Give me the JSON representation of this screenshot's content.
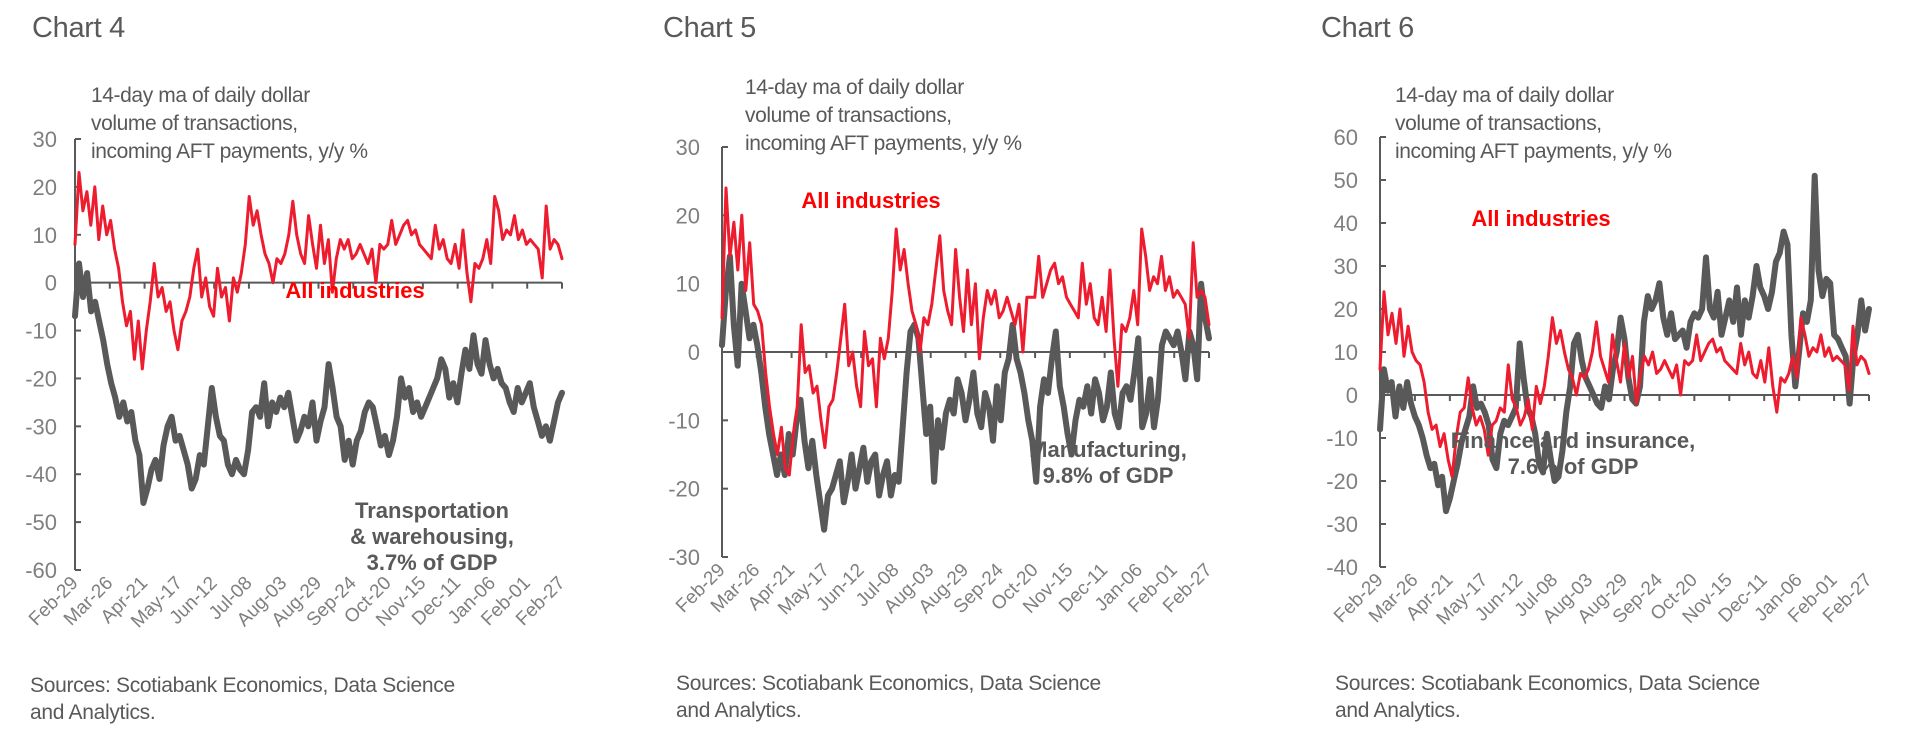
{
  "colors": {
    "all_industries_line": "#ed1c2e",
    "all_industries_label": "#ff0000",
    "sector_line": "#595959",
    "axis": "#595959",
    "text": "#595959",
    "tick_text": "#7f7f7f"
  },
  "chart_data": [
    {
      "type": "line",
      "title": "Chart 4",
      "subtitle": [
        "14-day ma of daily dollar",
        "volume of transactions,",
        "incoming AFT payments, y/y %"
      ],
      "ylabel": "y/y %",
      "ylim": [
        -60,
        30
      ],
      "yticks": [
        30,
        20,
        10,
        0,
        -10,
        -20,
        -30,
        -40,
        -50,
        -60
      ],
      "ytick_labels": [
        "30",
        "20",
        "10",
        "0",
        "-10",
        "-20",
        "-30",
        "-40",
        "-50",
        "-60"
      ],
      "xtick_labels": [
        "Feb-29",
        "Mar-26",
        "Apr-21",
        "May-17",
        "Jun-12",
        "Jul-08",
        "Aug-03",
        "Aug-29",
        "Sep-24",
        "Oct-20",
        "Nov-15",
        "Dec-11",
        "Jan-06",
        "Feb-01",
        "Feb-27"
      ],
      "legend": "inline",
      "grid": false,
      "sources": [
        "Sources: Scotiabank Economics, Data Science",
        "and Analytics."
      ],
      "series": [
        {
          "name": "All industries",
          "label_lines": [
            "All industries"
          ],
          "color": "#ed1c2e",
          "values": [
            8,
            23,
            15,
            19,
            12,
            20,
            9,
            16,
            10,
            13,
            7,
            3,
            -4,
            -9,
            -6,
            -16,
            -8,
            -18,
            -10,
            -4,
            4,
            -3,
            -1,
            -6,
            -4,
            -10,
            -14,
            -8,
            -6,
            -3,
            3,
            7,
            -3,
            1,
            -5,
            -7,
            3,
            -3,
            -1,
            -8,
            1,
            -2,
            2,
            8,
            18,
            12,
            15,
            10,
            6,
            4,
            0,
            5,
            4,
            6,
            10,
            17,
            10,
            6,
            4,
            14,
            8,
            3,
            12,
            4,
            9,
            -2,
            5,
            9,
            7,
            9,
            5,
            6,
            8,
            6,
            4,
            7,
            0,
            8,
            7,
            8,
            13,
            8,
            10,
            12,
            13,
            10,
            11,
            8,
            7,
            6,
            5,
            12,
            7,
            9,
            5,
            4,
            8,
            3,
            11,
            2,
            -4,
            4,
            3,
            5,
            9,
            4,
            18,
            15,
            9,
            11,
            10,
            14,
            9,
            11,
            8,
            9,
            8,
            7,
            1,
            16,
            7,
            9,
            8,
            5
          ]
        },
        {
          "name": "Transportation & warehousing",
          "label_lines": [
            "Transportation",
            "& warehousing,",
            "3.7% of GDP"
          ],
          "color": "#595959",
          "values": [
            -7,
            4,
            -3,
            2,
            -6,
            -4,
            -8,
            -12,
            -17,
            -21,
            -24,
            -28,
            -25,
            -29,
            -27,
            -33,
            -36,
            -46,
            -43,
            -39,
            -37,
            -41,
            -34,
            -30,
            -28,
            -33,
            -32,
            -35,
            -38,
            -43,
            -41,
            -36,
            -38,
            -30,
            -22,
            -28,
            -32,
            -33,
            -38,
            -40,
            -37,
            -39,
            -40,
            -35,
            -27,
            -26,
            -28,
            -21,
            -30,
            -25,
            -27,
            -24,
            -26,
            -23,
            -28,
            -33,
            -31,
            -28,
            -30,
            -25,
            -33,
            -29,
            -26,
            -17,
            -22,
            -28,
            -30,
            -37,
            -33,
            -38,
            -33,
            -31,
            -27,
            -25,
            -26,
            -30,
            -34,
            -32,
            -36,
            -33,
            -28,
            -20,
            -24,
            -22,
            -27,
            -25,
            -28,
            -26,
            -24,
            -22,
            -20,
            -16,
            -18,
            -24,
            -21,
            -25,
            -19,
            -14,
            -18,
            -11,
            -17,
            -19,
            -12,
            -17,
            -20,
            -18,
            -21,
            -22,
            -25,
            -27,
            -22,
            -25,
            -23,
            -21,
            -26,
            -29,
            -32,
            -30,
            -33,
            -29,
            -25,
            -23
          ]
        }
      ]
    },
    {
      "type": "line",
      "title": "Chart 5",
      "subtitle": [
        "14-day ma of daily dollar",
        "volume of transactions,",
        "incoming AFT payments, y/y %"
      ],
      "ylabel": "y/y %",
      "ylim": [
        -30,
        30
      ],
      "yticks": [
        30,
        20,
        10,
        0,
        -10,
        -20,
        -30
      ],
      "ytick_labels": [
        "30",
        "20",
        "10",
        "0",
        "-10",
        "-20",
        "-30"
      ],
      "xtick_labels": [
        "Feb-29",
        "Mar-26",
        "Apr-21",
        "May-17",
        "Jun-12",
        "Jul-08",
        "Aug-03",
        "Aug-29",
        "Sep-24",
        "Oct-20",
        "Nov-15",
        "Dec-11",
        "Jan-06",
        "Feb-01",
        "Feb-27"
      ],
      "legend": "inline",
      "grid": false,
      "sources": [
        "Sources: Scotiabank Economics, Data Science",
        "and Analytics."
      ],
      "series": [
        {
          "name": "All industries",
          "label_lines": [
            "All industries"
          ],
          "color": "#ed1c2e",
          "values": [
            5,
            24,
            14,
            19,
            12,
            20,
            9,
            16,
            7,
            6,
            4,
            -3,
            -8,
            -12,
            -15,
            -11,
            -17,
            -18,
            -12,
            -8,
            4,
            -3,
            -2,
            -6,
            -5,
            -10,
            -14,
            -8,
            -7,
            -3,
            2,
            7,
            -2,
            0,
            -5,
            -8,
            3,
            -2,
            -1,
            -8,
            2,
            -1,
            2,
            9,
            18,
            12,
            15,
            10,
            6,
            4,
            0,
            5,
            4,
            7,
            12,
            17,
            9,
            6,
            4,
            15,
            8,
            3,
            12,
            4,
            10,
            -1,
            5,
            9,
            7,
            9,
            5,
            6,
            8,
            6,
            4,
            7,
            0,
            8,
            8,
            8,
            14,
            8,
            10,
            12,
            13,
            10,
            11,
            8,
            7,
            6,
            5,
            13,
            7,
            10,
            5,
            4,
            8,
            3,
            12,
            2,
            -5,
            4,
            3,
            5,
            9,
            4,
            18,
            14,
            9,
            11,
            10,
            14,
            9,
            11,
            8,
            9,
            8,
            7,
            2,
            16,
            8,
            9,
            8,
            4
          ]
        },
        {
          "name": "Manufacturing",
          "label_lines": [
            "Manufacturing,",
            "9.8% of GDP"
          ],
          "color": "#595959",
          "values": [
            1,
            9,
            14,
            4,
            -2,
            10,
            6,
            2,
            4,
            1,
            -3,
            -8,
            -12,
            -15,
            -18,
            -15,
            -18,
            -12,
            -15,
            -10,
            -7,
            -13,
            -17,
            -13,
            -18,
            -22,
            -26,
            -21,
            -20,
            -18,
            -16,
            -22,
            -19,
            -15,
            -20,
            -17,
            -14,
            -19,
            -16,
            -15,
            -21,
            -18,
            -16,
            -21,
            -18,
            -19,
            -11,
            -3,
            3,
            4,
            2,
            -5,
            -12,
            -8,
            -19,
            -10,
            -14,
            -9,
            -7,
            -9,
            -4,
            -6,
            -10,
            -7,
            -3,
            -9,
            -11,
            -6,
            -8,
            -13,
            -5,
            -10,
            -3,
            -1,
            4,
            -1,
            -3,
            -6,
            -10,
            -13,
            -19,
            -8,
            -4,
            -6,
            -1,
            3,
            -5,
            -8,
            -12,
            -15,
            -10,
            -7,
            -8,
            -5,
            -9,
            -4,
            -6,
            -10,
            -8,
            -3,
            -9,
            -11,
            -6,
            -5,
            -7,
            -3,
            2,
            -11,
            -9,
            -4,
            -11,
            -7,
            1,
            3,
            2,
            1,
            3,
            0,
            -4,
            3,
            1,
            -4,
            10,
            5,
            2
          ]
        }
      ]
    },
    {
      "type": "line",
      "title": "Chart 6",
      "subtitle": [
        "14-day ma of daily dollar",
        "volume of transactions,",
        "incoming AFT payments, y/y %"
      ],
      "ylabel": "y/y %",
      "ylim": [
        -40,
        60
      ],
      "yticks": [
        60,
        50,
        40,
        30,
        20,
        10,
        0,
        -10,
        -20,
        -30,
        -40
      ],
      "ytick_labels": [
        "60",
        "50",
        "40",
        "30",
        "20",
        "10",
        "0",
        "-10",
        "-20",
        "-30",
        "-40"
      ],
      "xtick_labels": [
        "Feb-29",
        "Mar-26",
        "Apr-21",
        "May-17",
        "Jun-12",
        "Jul-08",
        "Aug-03",
        "Aug-29",
        "Sep-24",
        "Oct-20",
        "Nov-15",
        "Dec-11",
        "Jan-06",
        "Feb-01",
        "Feb-27"
      ],
      "legend": "inline",
      "grid": false,
      "sources": [
        "Sources: Scotiabank Economics, Data Science",
        "and Analytics."
      ],
      "series": [
        {
          "name": "Finance and insurance",
          "label_lines": [
            "Finance and insurance,",
            "7.6% of GDP"
          ],
          "color": "#595959",
          "values": [
            -8,
            6,
            1,
            3,
            -5,
            2,
            -3,
            3,
            -2,
            -5,
            -7,
            -10,
            -14,
            -17,
            -16,
            -21,
            -19,
            -27,
            -24,
            -20,
            -16,
            -11,
            -8,
            -5,
            2,
            -3,
            -2,
            -4,
            -7,
            -15,
            -17,
            -9,
            -6,
            -7,
            -5,
            -3,
            12,
            4,
            -3,
            -5,
            -9,
            -16,
            -18,
            -9,
            -15,
            -20,
            -19,
            -13,
            -4,
            2,
            12,
            14,
            8,
            4,
            2,
            0,
            -2,
            -3,
            2,
            -1,
            6,
            10,
            18,
            13,
            4,
            -1,
            -2,
            2,
            17,
            23,
            20,
            22,
            26,
            18,
            14,
            19,
            13,
            14,
            15,
            11,
            17,
            19,
            18,
            20,
            32,
            20,
            18,
            24,
            14,
            18,
            22,
            17,
            25,
            14,
            22,
            18,
            23,
            30,
            25,
            23,
            20,
            24,
            31,
            33,
            38,
            35,
            14,
            2,
            10,
            19,
            17,
            22,
            51,
            29,
            23,
            27,
            26,
            14,
            13,
            11,
            9,
            -2,
            9,
            14,
            22,
            15,
            20
          ]
        },
        {
          "name": "All industries",
          "label_lines": [
            "All industries"
          ],
          "color": "#ed1c2e",
          "values": [
            6,
            24,
            14,
            19,
            12,
            20,
            9,
            16,
            10,
            8,
            7,
            3,
            -4,
            -8,
            -7,
            -12,
            -9,
            -15,
            -19,
            -10,
            -4,
            -3,
            4,
            -3,
            -7,
            -5,
            -8,
            -14,
            -7,
            -6,
            -3,
            -4,
            7,
            -1,
            -3,
            -7,
            -5,
            -1,
            -8,
            2,
            -2,
            2,
            9,
            18,
            12,
            15,
            10,
            6,
            4,
            0,
            5,
            4,
            6,
            10,
            17,
            9,
            6,
            3,
            14,
            8,
            3,
            12,
            4,
            9,
            -2,
            5,
            9,
            7,
            10,
            5,
            6,
            8,
            6,
            4,
            7,
            0,
            8,
            7,
            8,
            14,
            8,
            10,
            12,
            13,
            10,
            11,
            8,
            7,
            6,
            5,
            12,
            7,
            10,
            5,
            4,
            8,
            3,
            11,
            2,
            -4,
            4,
            3,
            5,
            9,
            4,
            18,
            14,
            9,
            11,
            10,
            14,
            9,
            11,
            8,
            9,
            8,
            7,
            1,
            16,
            7,
            9,
            8,
            5
          ]
        }
      ]
    }
  ]
}
